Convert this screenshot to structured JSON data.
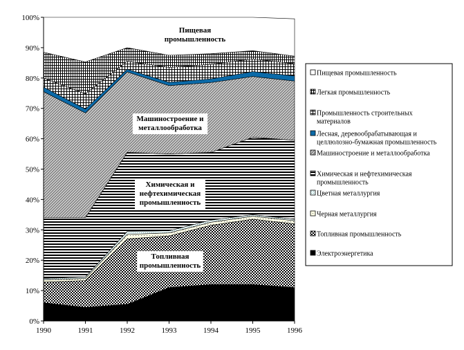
{
  "chart_data": {
    "type": "area",
    "stacked": true,
    "title": "",
    "xlabel": "",
    "ylabel": "",
    "x": [
      "1990",
      "1991",
      "1992",
      "1993",
      "1994",
      "1995",
      "1996"
    ],
    "ylim": [
      0,
      100
    ],
    "y_ticks": [
      "0%",
      "10%",
      "20%",
      "30%",
      "40%",
      "50%",
      "60%",
      "70%",
      "80%",
      "90%",
      "100%"
    ],
    "series": [
      {
        "name": "Электроэнергетика",
        "pattern": "solid-black",
        "values": [
          6,
          4.5,
          5.5,
          11,
          12,
          12,
          11
        ]
      },
      {
        "name": "Топливная промышленность",
        "pattern": "checker",
        "values": [
          6.8,
          8.8,
          21.5,
          17,
          19.5,
          21.5,
          21
        ]
      },
      {
        "name": "Черная металлургия",
        "pattern": "dots",
        "values": [
          0.7,
          0.7,
          1.5,
          1,
          1,
          1,
          1
        ]
      },
      {
        "name": "Цветная металлургия",
        "pattern": "light-fine",
        "values": [
          0.5,
          0.5,
          1,
          0.7,
          0.7,
          0.5,
          0.5
        ]
      },
      {
        "name": "Химическая и нефтехимическая промышленность",
        "pattern": "hstripes",
        "values": [
          20,
          19.5,
          26,
          25.3,
          22.3,
          25.5,
          26
        ]
      },
      {
        "name": "Машиностроение и металлообработка",
        "pattern": "crosshatch",
        "values": [
          41.5,
          34.5,
          26.5,
          22.5,
          23,
          20,
          19.5
        ]
      },
      {
        "name": "Лесная, деревообрабатывающая и целлюлозно-бумажная промышленность",
        "pattern": "solid-blue",
        "values": [
          1.5,
          1.3,
          0.9,
          1.1,
          1.2,
          1.6,
          1.7
        ]
      },
      {
        "name": "Промышленность строительных материалов",
        "pattern": "grid",
        "values": [
          3,
          5,
          2.6,
          4.9,
          4.8,
          4.2,
          4
        ]
      },
      {
        "name": "Легкая промышленность",
        "pattern": "vstripes",
        "values": [
          8.5,
          10.5,
          4.5,
          4,
          3.5,
          2.7,
          2.5
        ]
      },
      {
        "name": "Пищевая промышленность",
        "pattern": "white",
        "values": [
          11.5,
          14.7,
          10,
          12.5,
          12,
          11,
          12.3
        ]
      }
    ],
    "annotations": [
      {
        "text": "Пищевая промышленность",
        "lines": [
          "Пищевая",
          "промышленность"
        ]
      },
      {
        "text": "Машиностроение и металлообработка",
        "lines": [
          "Машиностроение и",
          "металлообработка"
        ]
      },
      {
        "text": "Химическая и нефтехимическая промышленность",
        "lines": [
          "Химическая и",
          "нефтехимическая",
          "промышленность"
        ]
      },
      {
        "text": "Топливная промышленность",
        "lines": [
          "Топливная",
          "промышленность"
        ]
      }
    ],
    "legend": {
      "placement": "right",
      "order": [
        9,
        8,
        7,
        6,
        5,
        4,
        3,
        2,
        1,
        0
      ],
      "lines": [
        [
          "Пищевая промышленность"
        ],
        [
          "Легкая промышленность"
        ],
        [
          "Промышленность строительных",
          "материалов"
        ],
        [
          "Лесная, деревообрабатывающая и",
          "целлюлозно-бумажная промышленность"
        ],
        [
          "Машиностроение и металлообработка"
        ],
        [
          "Химическая и нефтехимическая",
          "промышленность"
        ],
        [
          "Цветная металлургия"
        ],
        [
          "Черная металлургия"
        ],
        [
          "Топливная промышленность"
        ],
        [
          "Электроэнергетика"
        ]
      ]
    },
    "grid": false
  }
}
